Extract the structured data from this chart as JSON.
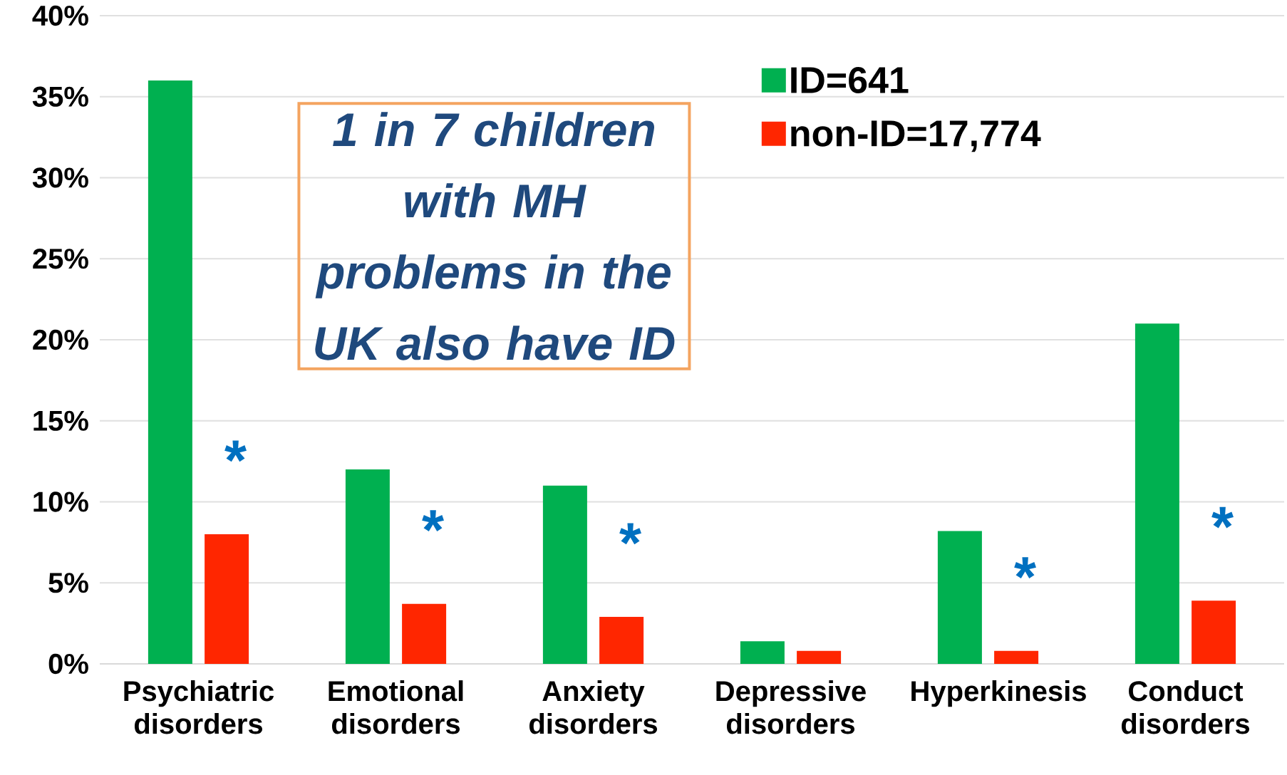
{
  "chart_data": {
    "type": "bar",
    "categories": [
      "Psychiatric disorders",
      "Emotional disorders",
      "Anxiety disorders",
      "Depressive disorders",
      "Hyperkinesis",
      "Conduct disorders"
    ],
    "series": [
      {
        "name": "ID=641",
        "color": "#00b050",
        "values": [
          36,
          12,
          11,
          1.4,
          8.2,
          21
        ]
      },
      {
        "name": "non-ID=17,774",
        "color": "#ff2600",
        "values": [
          8,
          3.7,
          2.9,
          0.8,
          0.8,
          3.9
        ]
      }
    ],
    "ylim": [
      0,
      40
    ],
    "yticks": [
      {
        "value": 0,
        "label": "0%"
      },
      {
        "value": 5,
        "label": "5%"
      },
      {
        "value": 10,
        "label": "10%"
      },
      {
        "value": 15,
        "label": "15%"
      },
      {
        "value": 20,
        "label": "20%"
      },
      {
        "value": 25,
        "label": "25%"
      },
      {
        "value": 30,
        "label": "30%"
      },
      {
        "value": 35,
        "label": "35%"
      },
      {
        "value": 40,
        "label": "40%"
      }
    ],
    "grid": "y",
    "legend": "top",
    "annotations": [
      "1 in 7 children with MH problems in the UK also have ID",
      "*",
      "*",
      "*",
      "*",
      "*"
    ]
  }
}
